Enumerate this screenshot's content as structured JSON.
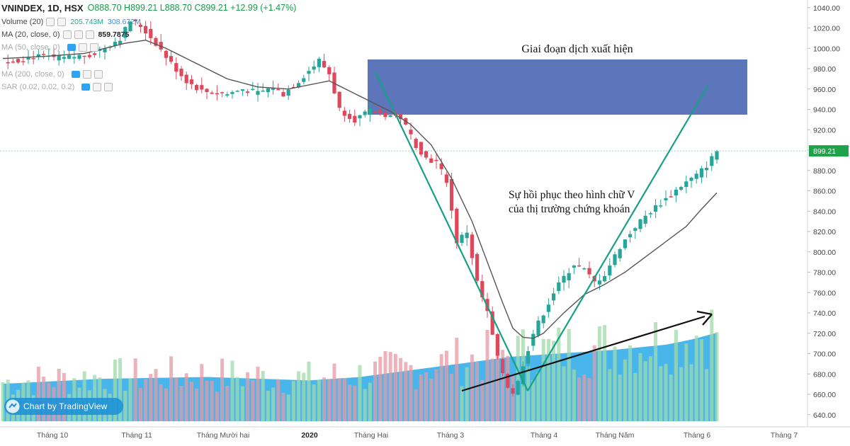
{
  "header": {
    "symbol": "VNINDEX, 1D, HSX",
    "open": "O888.70",
    "high": "H899.21",
    "low": "L888.70",
    "close": "C899.21",
    "change": "+12.99 (+1.47%)"
  },
  "indicators": [
    {
      "label": "Volume (20)",
      "value1": "205.743M",
      "value2": "308.672M",
      "faded": false
    },
    {
      "label": "MA (20, close, 0)",
      "value1": "859.7875",
      "value2": "",
      "faded": false
    },
    {
      "label": "MA (50, close, 0)",
      "value1": "",
      "value2": "",
      "faded": true
    },
    {
      "label": "MA (200, close, 0)",
      "value1": "",
      "value2": "",
      "faded": true
    },
    {
      "label": "SAR (0.02, 0.02, 0.2)",
      "value1": "",
      "value2": "",
      "faded": true
    }
  ],
  "watermark": "Chart by TradingView",
  "colors": {
    "up": "#26a69a",
    "down": "#e0475a",
    "ma20": "#555555",
    "volume_ma": "#29a9e8",
    "zone": "#2f4ea8",
    "trend": "#16a085",
    "arrow": "#111111",
    "price_tag": "#1fa34a"
  },
  "chart_data": {
    "type": "candlestick",
    "title": "VNINDEX, 1D, HSX",
    "y_ticks": [
      "640.00",
      "660.00",
      "680.00",
      "700.00",
      "720.00",
      "740.00",
      "760.00",
      "780.00",
      "800.00",
      "820.00",
      "840.00",
      "860.00",
      "880.00",
      "900.00",
      "920.00",
      "940.00",
      "960.00",
      "980.00",
      "1000.00",
      "1020.00",
      "1040.00"
    ],
    "ylim": [
      630,
      1045
    ],
    "x_months": [
      "Tháng 10",
      "Tháng 11",
      "Tháng Mười hai",
      "2020",
      "Tháng Hai",
      "Tháng 3",
      "Tháng 4",
      "Tháng Năm",
      "Tháng 6",
      "Tháng 7"
    ],
    "last_price": "899.21",
    "price_path": [
      [
        0,
        985
      ],
      [
        6,
        992
      ],
      [
        12,
        990
      ],
      [
        18,
        995
      ],
      [
        23,
        1010
      ],
      [
        25,
        1027
      ],
      [
        27,
        1022
      ],
      [
        30,
        1005
      ],
      [
        33,
        985
      ],
      [
        36,
        968
      ],
      [
        39,
        958
      ],
      [
        44,
        955
      ],
      [
        47,
        960
      ],
      [
        50,
        956
      ],
      [
        53,
        962
      ],
      [
        55,
        955
      ],
      [
        58,
        968
      ],
      [
        62,
        988
      ],
      [
        64,
        975
      ],
      [
        66,
        940
      ],
      [
        69,
        930
      ],
      [
        72,
        938
      ],
      [
        75,
        935
      ],
      [
        78,
        932
      ],
      [
        81,
        905
      ],
      [
        83,
        892
      ],
      [
        85,
        888
      ],
      [
        87,
        870
      ],
      [
        89,
        810
      ],
      [
        91,
        820
      ],
      [
        93,
        770
      ],
      [
        95,
        740
      ],
      [
        97,
        695
      ],
      [
        99,
        668
      ],
      [
        100,
        662
      ],
      [
        101,
        672
      ],
      [
        102,
        690
      ],
      [
        104,
        720
      ],
      [
        106,
        740
      ],
      [
        108,
        760
      ],
      [
        110,
        775
      ],
      [
        112,
        788
      ],
      [
        114,
        782
      ],
      [
        116,
        770
      ],
      [
        118,
        778
      ],
      [
        121,
        805
      ],
      [
        124,
        825
      ],
      [
        127,
        840
      ],
      [
        130,
        852
      ],
      [
        133,
        865
      ],
      [
        136,
        875
      ],
      [
        138,
        885
      ],
      [
        140,
        899.21
      ]
    ],
    "ma20_path": [
      [
        0,
        990
      ],
      [
        8,
        992
      ],
      [
        16,
        995
      ],
      [
        24,
        1005
      ],
      [
        28,
        1008
      ],
      [
        32,
        1000
      ],
      [
        38,
        985
      ],
      [
        44,
        970
      ],
      [
        50,
        962
      ],
      [
        56,
        960
      ],
      [
        60,
        964
      ],
      [
        64,
        968
      ],
      [
        68,
        958
      ],
      [
        72,
        948
      ],
      [
        76,
        938
      ],
      [
        80,
        925
      ],
      [
        84,
        905
      ],
      [
        88,
        872
      ],
      [
        92,
        830
      ],
      [
        95,
        790
      ],
      [
        98,
        750
      ],
      [
        100,
        725
      ],
      [
        102,
        716
      ],
      [
        104,
        715
      ],
      [
        106,
        720
      ],
      [
        110,
        740
      ],
      [
        114,
        758
      ],
      [
        118,
        768
      ],
      [
        122,
        780
      ],
      [
        126,
        795
      ],
      [
        130,
        810
      ],
      [
        134,
        825
      ],
      [
        137,
        842
      ],
      [
        140,
        858
      ]
    ],
    "volume_ma_path": [
      [
        0,
        0.22
      ],
      [
        20,
        0.25
      ],
      [
        40,
        0.26
      ],
      [
        60,
        0.24
      ],
      [
        70,
        0.26
      ],
      [
        80,
        0.3
      ],
      [
        90,
        0.34
      ],
      [
        100,
        0.38
      ],
      [
        110,
        0.4
      ],
      [
        120,
        0.42
      ],
      [
        130,
        0.45
      ],
      [
        135,
        0.48
      ],
      [
        140,
        0.52
      ]
    ],
    "annotations": [
      {
        "text": "Giai đoạn dịch xuất hiện"
      },
      {
        "text": "Sự hồi phục theo hình chữ V"
      },
      {
        "text": "của thị trường chứng khoán"
      }
    ],
    "grid": false,
    "legend": "top-left"
  }
}
